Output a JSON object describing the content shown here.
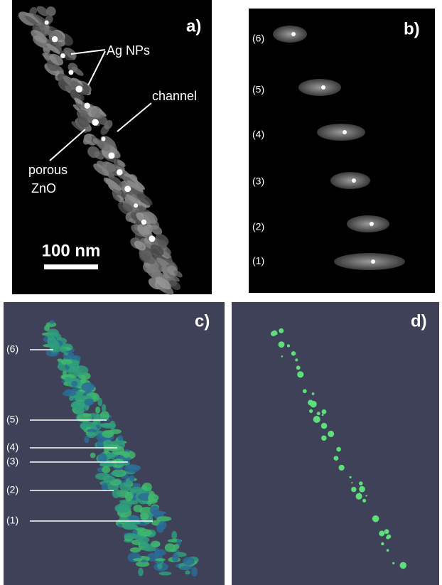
{
  "panels": [
    {
      "label": "a)",
      "annotations": [
        "Ag NPs",
        "channel",
        "porous",
        "ZnO"
      ],
      "scale_bar": "100 nm"
    },
    {
      "label": "b)",
      "slices": [
        "(6)",
        "(5)",
        "(4)",
        "(3)",
        "(2)",
        "(1)"
      ]
    },
    {
      "label": "c)",
      "slices": [
        "(6)",
        "(5)",
        "(4)",
        "(3)",
        "(2)",
        "(1)"
      ]
    },
    {
      "label": "d)"
    }
  ]
}
